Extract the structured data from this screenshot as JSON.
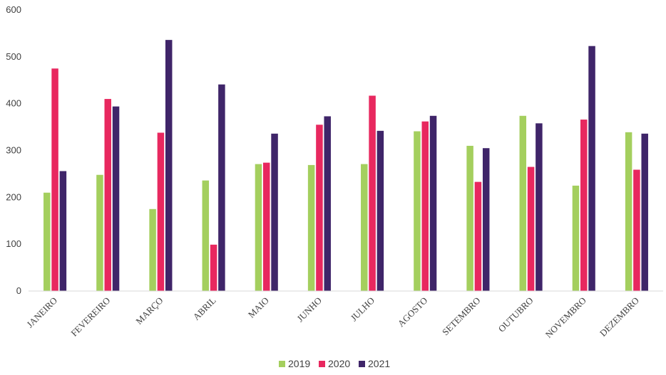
{
  "chart_data": {
    "type": "bar",
    "title": "",
    "xlabel": "",
    "ylabel": "",
    "ylim": [
      0,
      600
    ],
    "yticks": [
      0,
      100,
      200,
      300,
      400,
      500,
      600
    ],
    "grid": false,
    "legend_position": "bottom",
    "categories": [
      "JANEIRO",
      "FEVEREIRO",
      "MARÇO",
      "ABRIL",
      "MAIO",
      "JUNHO",
      "JULHO",
      "AGOSTO",
      "SETEMBRO",
      "OUTUBRO",
      "NOVEMBRO",
      "DEZEMBRO"
    ],
    "series": [
      {
        "name": "2019",
        "color": "#a4cf5e",
        "values": [
          210,
          248,
          175,
          236,
          271,
          269,
          271,
          341,
          310,
          374,
          225,
          339
        ]
      },
      {
        "name": "2020",
        "color": "#e8285f",
        "values": [
          475,
          410,
          338,
          99,
          274,
          355,
          417,
          362,
          233,
          265,
          366,
          259
        ]
      },
      {
        "name": "2021",
        "color": "#3f2569",
        "values": [
          256,
          394,
          536,
          441,
          336,
          373,
          342,
          374,
          305,
          358,
          523,
          336
        ]
      }
    ]
  }
}
